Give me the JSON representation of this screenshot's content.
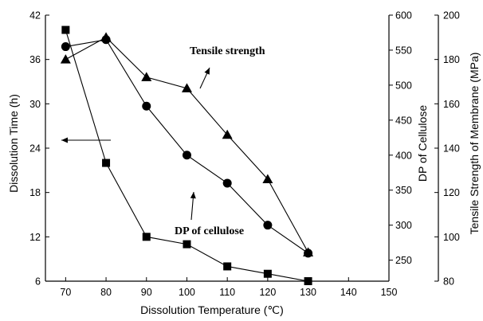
{
  "chart_data": {
    "type": "line",
    "title": "",
    "xlabel": "Dissolution Temperature (℃)",
    "xlim": [
      65,
      150
    ],
    "xticks": [
      70,
      80,
      90,
      100,
      110,
      120,
      130,
      140,
      150
    ],
    "y_axes": {
      "left": {
        "label": "Dissolution Time (h)",
        "lim": [
          6,
          42
        ],
        "ticks": [
          6,
          12,
          18,
          24,
          30,
          36,
          42
        ]
      },
      "right1": {
        "label": "DP of Cellulose",
        "lim": [
          220,
          600
        ],
        "ticks": [
          250,
          300,
          350,
          400,
          450,
          500,
          550,
          600
        ]
      },
      "right2": {
        "label": "Tensile Strength of Membrane (MPa)",
        "lim": [
          80,
          200
        ],
        "ticks": [
          80,
          100,
          120,
          140,
          160,
          180,
          200
        ]
      }
    },
    "series": [
      {
        "name": "",
        "axis": "left",
        "marker": "square",
        "x": [
          70,
          80,
          90,
          100,
          110,
          120,
          130
        ],
        "y": [
          40,
          22,
          12,
          11,
          8,
          7,
          6
        ]
      },
      {
        "name": "DP of cellulose",
        "axis": "right1",
        "marker": "circle",
        "x": [
          70,
          80,
          90,
          100,
          110,
          120,
          130
        ],
        "y": [
          555,
          565,
          470,
          400,
          360,
          300,
          260
        ]
      },
      {
        "name": "Tensile strength",
        "axis": "right2",
        "marker": "triangle",
        "x": [
          70,
          80,
          90,
          100,
          110,
          120,
          130
        ],
        "y": [
          180,
          190,
          172,
          167,
          146,
          126,
          93
        ]
      }
    ],
    "annotations": [
      {
        "text": "Tensile strength",
        "series": 2
      },
      {
        "text": "DP of cellulose",
        "series": 1
      }
    ],
    "grid": false,
    "legend": "none"
  }
}
